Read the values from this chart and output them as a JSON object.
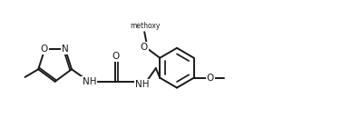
{
  "bg_color": "#ffffff",
  "line_color": "#1a1a1a",
  "line_width": 1.4,
  "font_size": 7.5,
  "fig_width": 3.88,
  "fig_height": 1.42,
  "dpi": 100,
  "xlim": [
    0,
    10
  ],
  "ylim": [
    0,
    3.6
  ]
}
